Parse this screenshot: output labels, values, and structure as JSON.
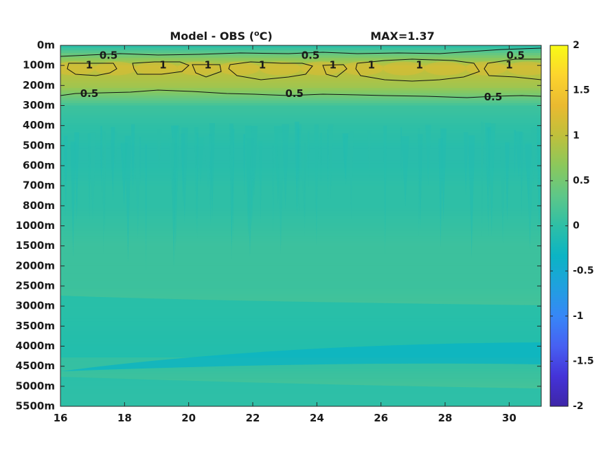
{
  "chart_data": {
    "type": "heatmap",
    "title": "Model - OBS (",
    "title_sup": "o",
    "title_unit": "C)",
    "max_label": "MAX=1.37",
    "x_ticks": [
      16,
      18,
      20,
      22,
      24,
      26,
      28,
      30
    ],
    "x_range": [
      16,
      31
    ],
    "y_tick_labels": [
      "0m",
      "100m",
      "200m",
      "300m",
      "400m",
      "500m",
      "600m",
      "700m",
      "800m",
      "1000m",
      "1500m",
      "2000m",
      "2500m",
      "3000m",
      "3500m",
      "4000m",
      "4500m",
      "5000m",
      "5500m"
    ],
    "colorbar_ticks": [
      "2",
      "1.5",
      "1",
      "0.5",
      "0",
      "-0.5",
      "-1",
      "-1.5",
      "-2"
    ],
    "colorbar_range": [
      -2,
      2
    ],
    "colormap": [
      "#3e26a8",
      "#4433d8",
      "#4760f2",
      "#3787f7",
      "#1fa1de",
      "#0bb4c4",
      "#2ebfa6",
      "#5ec788",
      "#8bc85c",
      "#bfc03c",
      "#eaba30",
      "#fcd42e",
      "#f9fb15"
    ],
    "depth_profile": [
      {
        "level": "0m",
        "value": 0.0
      },
      {
        "level": "100m",
        "value": 1.05
      },
      {
        "level": "200m",
        "value": 0.8
      },
      {
        "level": "300m",
        "value": 0.1
      },
      {
        "level": "400m",
        "value": 0.0
      },
      {
        "level": "500m",
        "value": -0.05
      },
      {
        "level": "600m",
        "value": -0.05
      },
      {
        "level": "700m",
        "value": 0.0
      },
      {
        "level": "800m",
        "value": 0.0
      },
      {
        "level": "1000m",
        "value": 0.05
      },
      {
        "level": "1500m",
        "value": 0.1
      },
      {
        "level": "2000m",
        "value": 0.1
      },
      {
        "level": "2500m",
        "value": 0.1
      },
      {
        "level": "3000m",
        "value": 0.15
      },
      {
        "level": "3500m",
        "value": 0.1
      },
      {
        "level": "4000m",
        "value": 0.05
      },
      {
        "level": "4500m",
        "value": 0.05
      },
      {
        "level": "5000m",
        "value": 0.15
      },
      {
        "level": "5500m",
        "value": 0.2
      }
    ],
    "contour_labels": [
      {
        "text": "0.5",
        "x": 17.5,
        "y": "100m"
      },
      {
        "text": "0.5",
        "x": 23.8,
        "y": "100m"
      },
      {
        "text": "0.5",
        "x": 30.2,
        "y": "100m"
      },
      {
        "text": "1",
        "x": 16.9,
        "y": "100m"
      },
      {
        "text": "1",
        "x": 19.2,
        "y": "100m"
      },
      {
        "text": "1",
        "x": 20.6,
        "y": "100m"
      },
      {
        "text": "1",
        "x": 22.3,
        "y": "100m"
      },
      {
        "text": "1",
        "x": 24.5,
        "y": "100m"
      },
      {
        "text": "1",
        "x": 25.7,
        "y": "100m"
      },
      {
        "text": "1",
        "x": 27.2,
        "y": "100m"
      },
      {
        "text": "1",
        "x": 30.0,
        "y": "100m"
      },
      {
        "text": "0.5",
        "x": 16.9,
        "y": "200m"
      },
      {
        "text": "0.5",
        "x": 23.3,
        "y": "200m"
      },
      {
        "text": "0.5",
        "x": 29.5,
        "y": "300m"
      }
    ]
  }
}
